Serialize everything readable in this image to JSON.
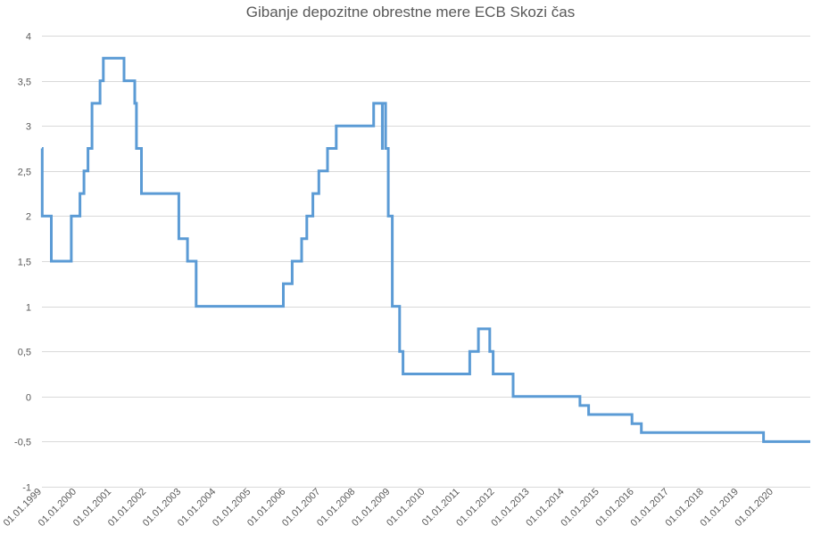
{
  "chart_data": {
    "type": "line",
    "title": "Gibanje depozitne obrestne mere ECB Skozi čas",
    "xlabel": "",
    "ylabel": "",
    "ylim": [
      -1,
      4
    ],
    "yticks": [
      "4",
      "3,5",
      "3",
      "2,5",
      "2",
      "1,5",
      "1",
      "0,5",
      "0",
      "-0,5",
      "-1"
    ],
    "ytick_values": [
      4,
      3.5,
      3,
      2.5,
      2,
      1.5,
      1,
      0.5,
      0,
      -0.5,
      -1
    ],
    "xticks": [
      "01.01.1999",
      "01.01.2000",
      "01.01.2001",
      "01.01.2002",
      "01.01.2003",
      "01.01.2004",
      "01.01.2005",
      "01.01.2006",
      "01.01.2007",
      "01.01.2008",
      "01.01.2009",
      "01.01.2010",
      "01.01.2011",
      "01.01.2012",
      "01.01.2013",
      "01.01.2014",
      "01.01.2015",
      "01.01.2016",
      "01.01.2017",
      "01.01.2018",
      "01.01.2019",
      "01.01.2020"
    ],
    "xlim": [
      "1999-01-01",
      "2021-01-20"
    ],
    "grid": true,
    "legend": "none",
    "series": [
      {
        "color": "#5b9bd5",
        "step": true,
        "points": [
          [
            "1999-01-01",
            2.75
          ],
          [
            "1999-01-04",
            2.0
          ],
          [
            "1999-01-22",
            2.0
          ],
          [
            "1999-04-09",
            1.5
          ],
          [
            "1999-11-05",
            2.0
          ],
          [
            "2000-02-04",
            2.25
          ],
          [
            "2000-03-17",
            2.5
          ],
          [
            "2000-04-28",
            2.75
          ],
          [
            "2000-06-09",
            3.25
          ],
          [
            "2000-09-01",
            3.5
          ],
          [
            "2000-10-06",
            3.75
          ],
          [
            "2001-05-11",
            3.5
          ],
          [
            "2001-08-31",
            3.25
          ],
          [
            "2001-09-18",
            2.75
          ],
          [
            "2001-11-09",
            2.25
          ],
          [
            "2002-12-06",
            1.75
          ],
          [
            "2003-03-07",
            1.5
          ],
          [
            "2003-06-06",
            1.0
          ],
          [
            "2005-12-06",
            1.25
          ],
          [
            "2006-03-08",
            1.5
          ],
          [
            "2006-06-15",
            1.75
          ],
          [
            "2006-08-09",
            2.0
          ],
          [
            "2006-10-11",
            2.25
          ],
          [
            "2006-12-13",
            2.5
          ],
          [
            "2007-03-14",
            2.75
          ],
          [
            "2007-06-13",
            3.0
          ],
          [
            "2008-07-09",
            3.25
          ],
          [
            "2008-10-08",
            2.75
          ],
          [
            "2008-10-09",
            3.25
          ],
          [
            "2008-11-12",
            2.75
          ],
          [
            "2008-12-10",
            2.0
          ],
          [
            "2009-01-21",
            1.0
          ],
          [
            "2009-04-08",
            0.5
          ],
          [
            "2009-05-13",
            0.25
          ],
          [
            "2011-04-13",
            0.5
          ],
          [
            "2011-07-13",
            0.75
          ],
          [
            "2011-11-09",
            0.5
          ],
          [
            "2011-12-14",
            0.25
          ],
          [
            "2012-07-11",
            0.0
          ],
          [
            "2014-06-11",
            -0.1
          ],
          [
            "2014-09-10",
            -0.2
          ],
          [
            "2015-12-09",
            -0.3
          ],
          [
            "2016-03-16",
            -0.4
          ],
          [
            "2019-09-18",
            -0.5
          ],
          [
            "2021-01-20",
            -0.5
          ]
        ]
      }
    ]
  }
}
